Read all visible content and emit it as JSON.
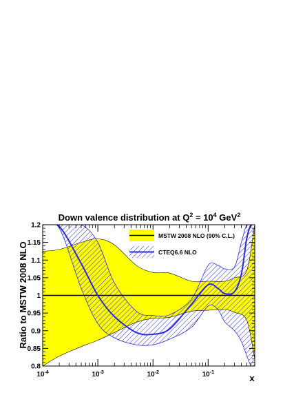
{
  "chart_data": {
    "type": "area",
    "title_parts": {
      "prefix": "Down valence distribution at Q",
      "q_exp": "2",
      "mid": " = 10",
      "val_exp": "4",
      "unit": " GeV",
      "unit_exp": "2"
    },
    "xlabel": "x",
    "ylabel": "Ratio to MSTW 2008 NLO",
    "x_scale": "log",
    "xlim": [
      0.0001,
      0.7
    ],
    "ylim": [
      0.8,
      1.2
    ],
    "x_ticks": [
      {
        "value": 0.0001,
        "mant": "10",
        "exp": "-4"
      },
      {
        "value": 0.001,
        "mant": "10",
        "exp": "-3"
      },
      {
        "value": 0.01,
        "mant": "10",
        "exp": "-2"
      },
      {
        "value": 0.1,
        "mant": "10",
        "exp": "-1"
      }
    ],
    "y_ticks": [
      {
        "value": 0.8,
        "label": "0.8"
      },
      {
        "value": 0.85,
        "label": "0.85"
      },
      {
        "value": 0.9,
        "label": "0.9"
      },
      {
        "value": 0.95,
        "label": "0.95"
      },
      {
        "value": 1.0,
        "label": "1"
      },
      {
        "value": 1.05,
        "label": "1.05"
      },
      {
        "value": 1.1,
        "label": "1.1"
      },
      {
        "value": 1.15,
        "label": "1.15"
      },
      {
        "value": 1.2,
        "label": "1.2"
      }
    ],
    "legend": {
      "placement": "top-right",
      "entries": [
        {
          "label": "MSTW 2008 NLO (90% C.L.)"
        },
        {
          "label": "CTEQ6.6 NLO"
        }
      ]
    },
    "colors": {
      "mstw_fill": "#ffff00",
      "cteq": "#2a2ad8",
      "line": "#000000"
    },
    "series": [
      {
        "name": "MSTW 2008 NLO (90% C.L.)",
        "style": "band",
        "central": 1.0,
        "x": [
          0.0001,
          0.0002,
          0.0005,
          0.001,
          0.002,
          0.005,
          0.01,
          0.02,
          0.05,
          0.1,
          0.2,
          0.3,
          0.5,
          0.7
        ],
        "upper": [
          1.125,
          1.13,
          1.15,
          1.16,
          1.143,
          1.085,
          1.065,
          1.063,
          1.04,
          1.04,
          1.04,
          1.05,
          1.07,
          1.2
        ],
        "lower": [
          0.8,
          0.828,
          0.855,
          0.873,
          0.895,
          0.924,
          0.935,
          0.938,
          0.955,
          0.958,
          0.96,
          0.952,
          0.93,
          0.82
        ]
      },
      {
        "name": "CTEQ6.6 NLO",
        "style": "hatched-band",
        "x": [
          0.0001,
          0.0002,
          0.0005,
          0.001,
          0.002,
          0.005,
          0.01,
          0.02,
          0.05,
          0.1,
          0.15,
          0.2,
          0.3,
          0.4,
          0.5,
          0.6,
          0.7
        ],
        "central": [
          1.2,
          1.195,
          1.09,
          1.0,
          0.94,
          0.895,
          0.89,
          0.905,
          0.975,
          1.03,
          1.02,
          1.005,
          1.01,
          1.06,
          1.16,
          1.2,
          1.2
        ],
        "upper": [
          1.2,
          1.2,
          1.2,
          1.15,
          1.035,
          0.955,
          0.943,
          0.945,
          0.99,
          1.085,
          1.085,
          1.075,
          1.08,
          1.15,
          1.2,
          1.2,
          1.2
        ],
        "lower": [
          1.2,
          1.19,
          1.02,
          0.92,
          0.88,
          0.86,
          0.86,
          0.876,
          0.91,
          0.97,
          0.96,
          0.925,
          0.9,
          0.87,
          0.83,
          0.8,
          0.8
        ]
      }
    ]
  }
}
